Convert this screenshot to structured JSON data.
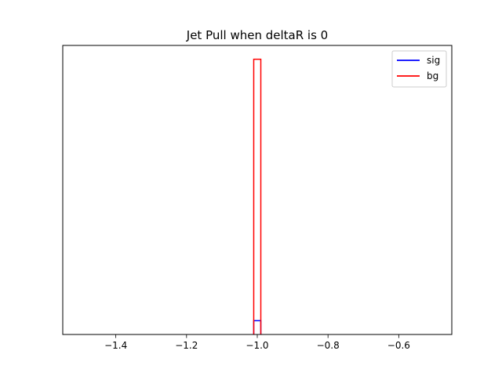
{
  "chart_data": {
    "type": "histogram",
    "title": "Jet Pull when deltaR is 0",
    "xlabel": "",
    "ylabel": "",
    "xlim": [
      -1.55,
      -0.45
    ],
    "ylim": [
      0,
      1.05
    ],
    "x_ticks": [
      -1.4,
      -1.2,
      -1.0,
      -0.8,
      -0.6
    ],
    "x_tick_labels": [
      "−1.4",
      "−1.2",
      "−1.0",
      "−0.8",
      "−0.6"
    ],
    "y_ticks_visible": false,
    "histtype": "step",
    "legend": {
      "placement": "top-right"
    },
    "series": [
      {
        "name": "sig",
        "color": "#0000ff",
        "bins": [
          [
            -1.01,
            -0.99
          ]
        ],
        "heights": [
          0.05
        ]
      },
      {
        "name": "bg",
        "color": "#ff0000",
        "bins": [
          [
            -1.01,
            -0.99
          ]
        ],
        "heights": [
          1.0
        ]
      }
    ]
  }
}
